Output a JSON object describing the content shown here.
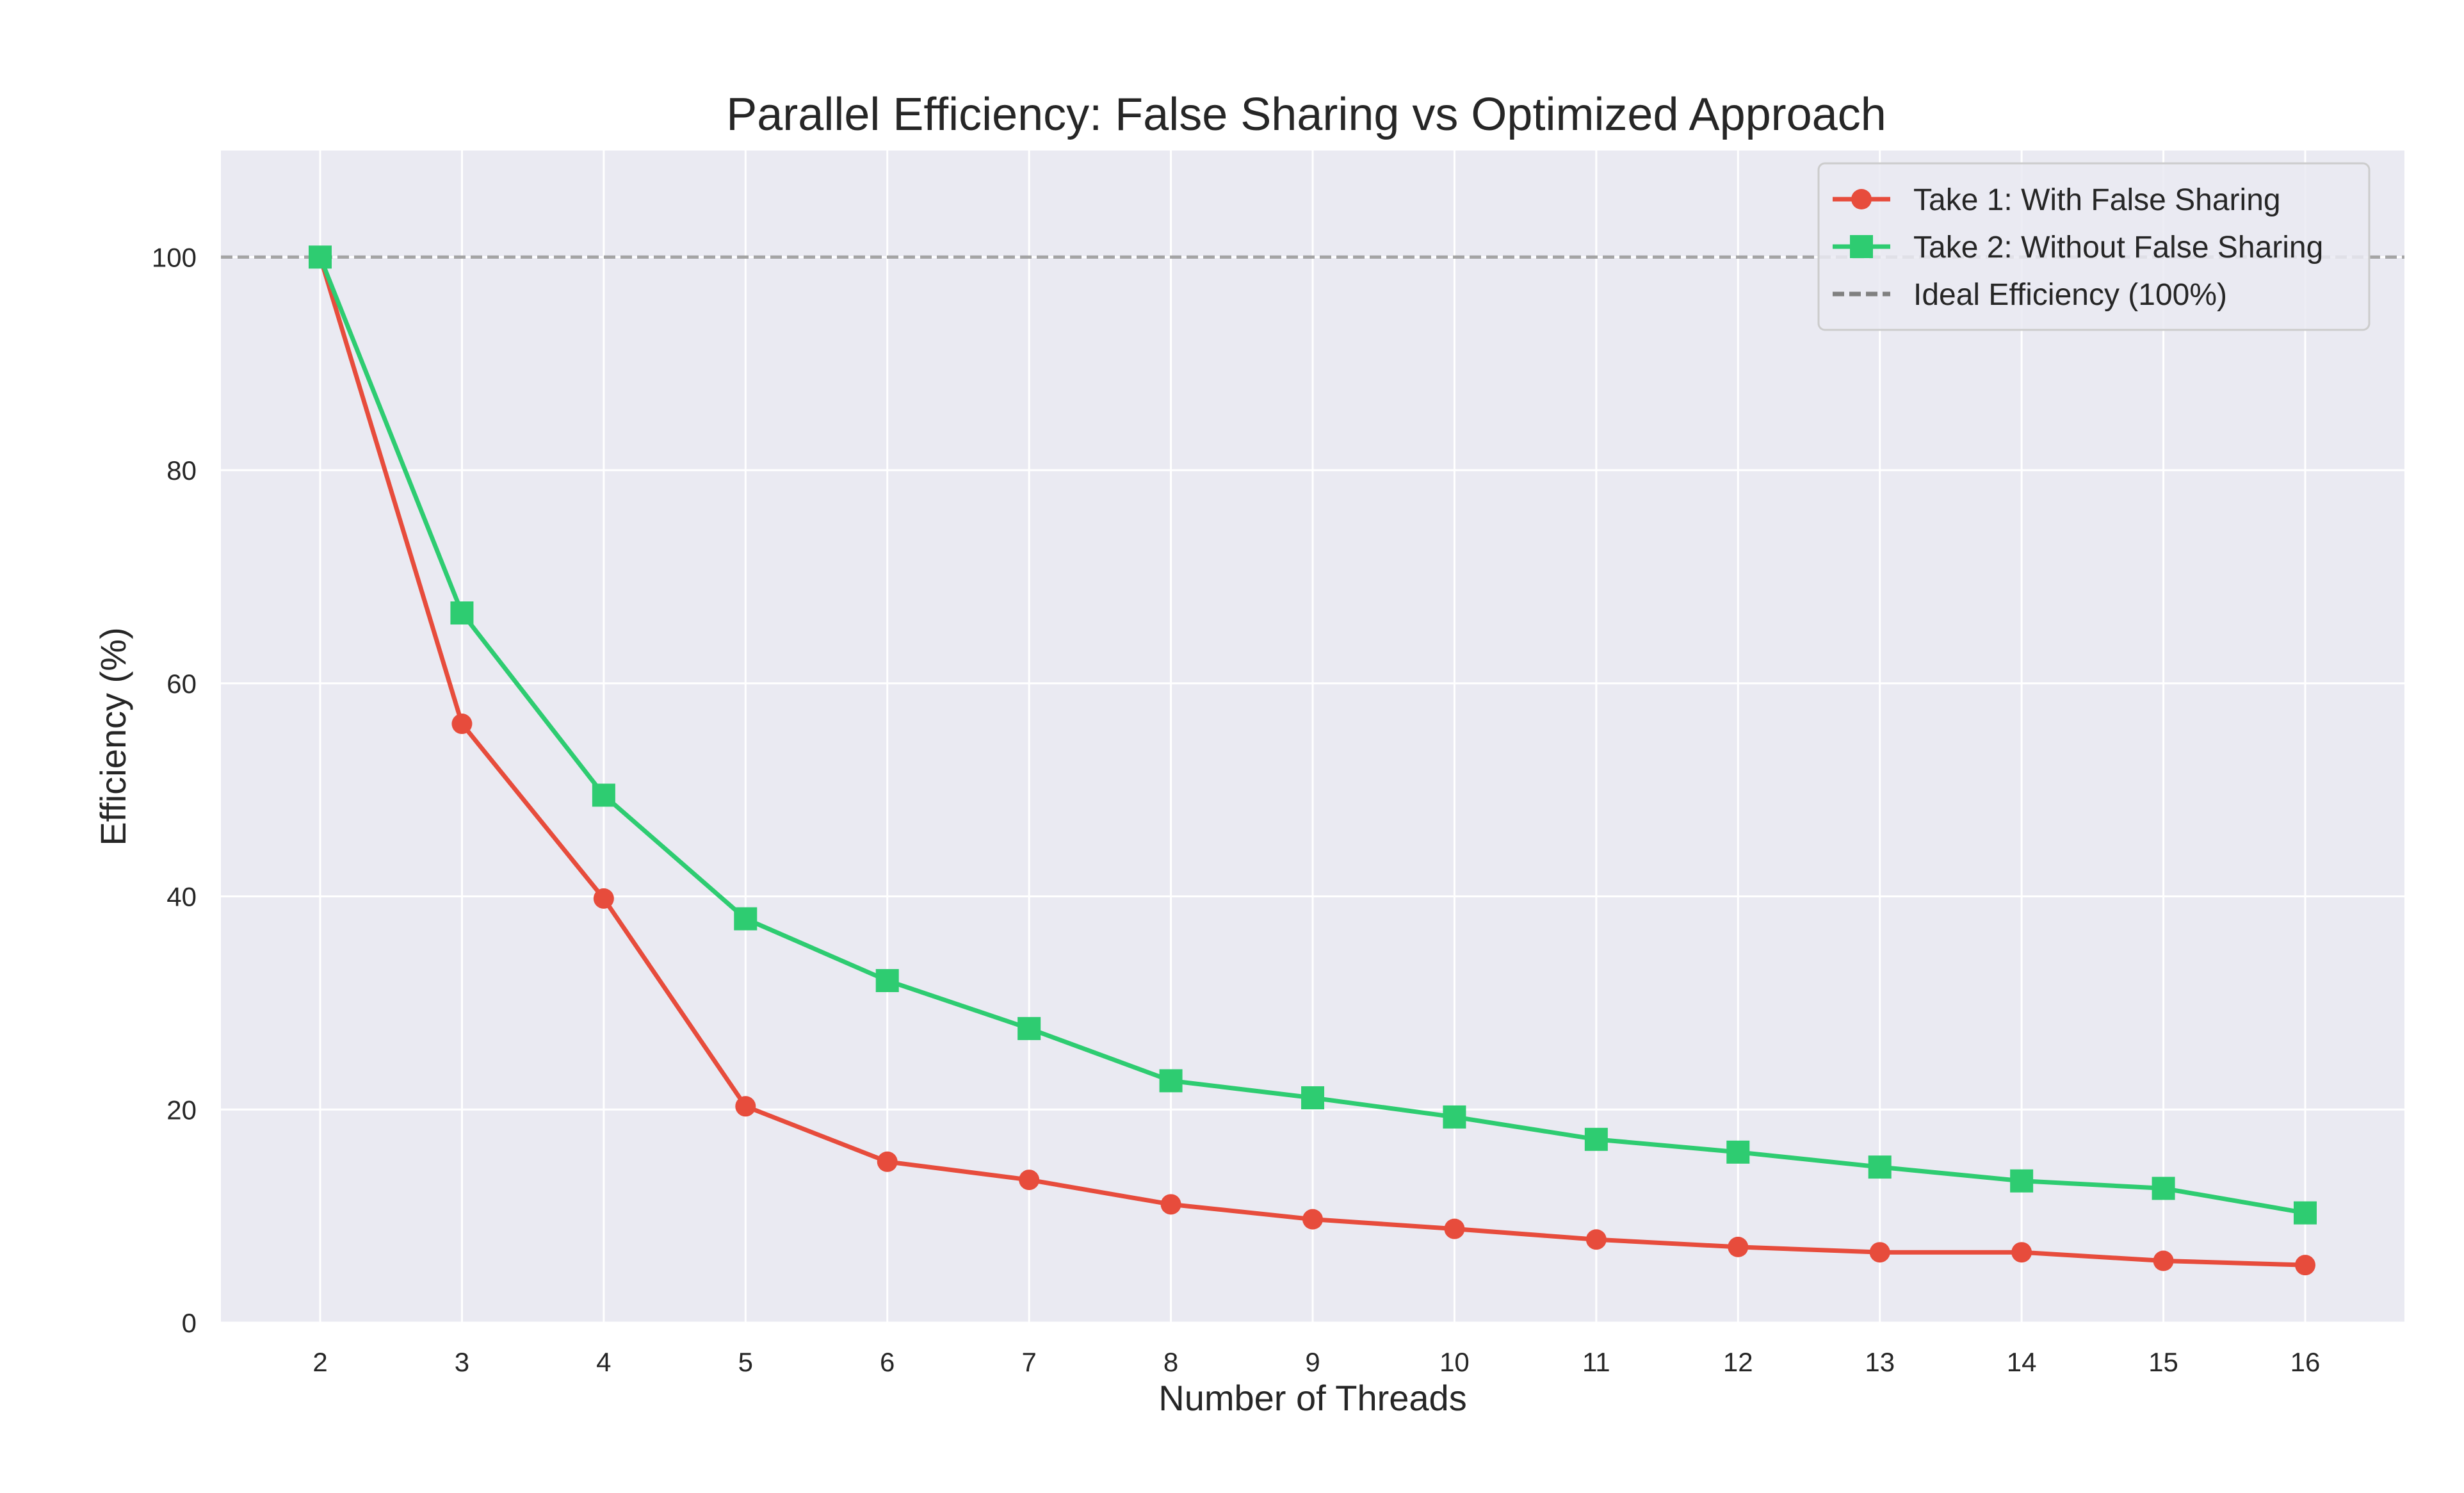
{
  "chart_data": {
    "type": "line",
    "title": "Parallel Efficiency: False Sharing vs Optimized Approach",
    "xlabel": "Number of Threads",
    "ylabel": "Efficiency (%)",
    "x": [
      2,
      3,
      4,
      5,
      6,
      7,
      8,
      9,
      10,
      11,
      12,
      13,
      14,
      15,
      16
    ],
    "x_tick_labels": [
      "2",
      "3",
      "4",
      "5",
      "6",
      "7",
      "8",
      "9",
      "10",
      "11",
      "12",
      "13",
      "14",
      "15",
      "16"
    ],
    "y_ticks": [
      0,
      20,
      40,
      60,
      80,
      100
    ],
    "y_tick_labels": [
      "0",
      "20",
      "40",
      "60",
      "80",
      "100"
    ],
    "xlim": [
      1.3,
      16.7
    ],
    "ylim": [
      0,
      110
    ],
    "grid": true,
    "legend_position": "top-right",
    "series": [
      {
        "name": "Take 1: With False Sharing",
        "marker": "circle",
        "color": "#e74c3c",
        "values": [
          100,
          56.2,
          39.8,
          20.3,
          15.1,
          13.4,
          11.1,
          9.7,
          8.8,
          7.8,
          7.1,
          6.6,
          6.6,
          5.8,
          5.4
        ]
      },
      {
        "name": "Take 2: Without False Sharing",
        "marker": "square",
        "color": "#2ecc71",
        "values": [
          100,
          66.6,
          49.5,
          37.9,
          32.1,
          27.6,
          22.7,
          21.1,
          19.3,
          17.2,
          16.0,
          14.6,
          13.3,
          12.6,
          10.3
        ]
      }
    ],
    "reference_lines": [
      {
        "name": "Ideal Efficiency (100%)",
        "y": 100,
        "style": "dashed",
        "color": "#808080"
      }
    ],
    "plot_background": "#eaeaf2",
    "grid_color": "#ffffff"
  }
}
